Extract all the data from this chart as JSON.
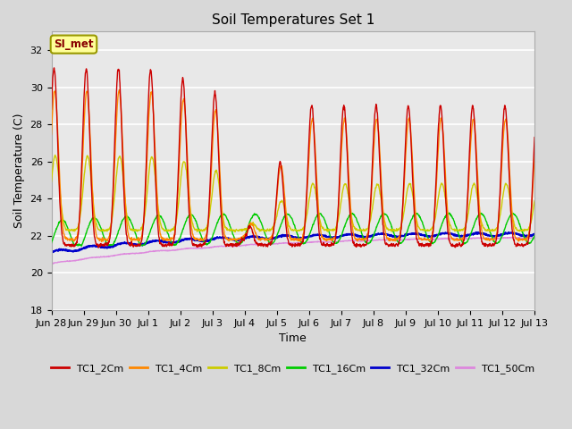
{
  "title": "Soil Temperatures Set 1",
  "xlabel": "Time",
  "ylabel": "Soil Temperature (C)",
  "ylim": [
    18,
    33
  ],
  "yticks": [
    18,
    20,
    22,
    24,
    26,
    28,
    30,
    32
  ],
  "background_color": "#d8d8d8",
  "plot_bg_color": "#e8e8e8",
  "grid_color": "#ffffff",
  "annotation_text": "SI_met",
  "annotation_bg": "#ffff99",
  "annotation_border": "#999900",
  "annotation_text_color": "#880000",
  "series_colors": {
    "TC1_2Cm": "#cc0000",
    "TC1_4Cm": "#ff8800",
    "TC1_8Cm": "#cccc00",
    "TC1_16Cm": "#00cc00",
    "TC1_32Cm": "#0000cc",
    "TC1_50Cm": "#dd88dd"
  },
  "x_tick_labels": [
    "Jun 28",
    "Jun 29",
    "Jun 30",
    "Jul 1",
    "Jul 2",
    "Jul 3",
    "Jul 4",
    "Jul 5",
    "Jul 6",
    "Jul 7",
    "Jul 8",
    "Jul 9",
    "Jul 10",
    "Jul 11",
    "Jul 12",
    "Jul 13"
  ],
  "n_points": 1440
}
